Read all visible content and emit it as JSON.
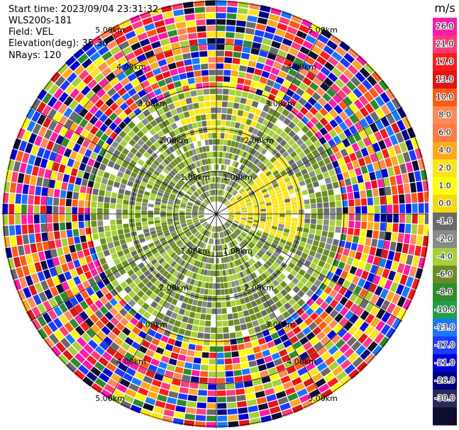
{
  "header": {
    "start_time": "Start time: 2023/09/04 23:31:32",
    "instrument": "WLS200s-181",
    "field": "Field: VEL",
    "elevation": "Elevation(deg): 35.30",
    "nrays": "NRays: 120"
  },
  "chart_data": {
    "type": "heatmap",
    "projection": "polar (PPI)",
    "nrays": 120,
    "range_rings_km": [
      {
        "value": 1.0,
        "label": "1.00km"
      },
      {
        "value": 2.0,
        "label": "2.00km"
      },
      {
        "value": 3.0,
        "label": "3.00km"
      },
      {
        "value": 4.0,
        "label": "4.00km"
      },
      {
        "value": 5.0,
        "label": "5.00km"
      }
    ],
    "colorbar": {
      "unit": "m/s",
      "ticks": [
        "26.0",
        "21.0",
        "17.0",
        "13.0",
        "10.0",
        "8.0",
        "6.0",
        "4.0",
        "2.0",
        "1.0",
        "0.0",
        "-1.0",
        "-2.0",
        "-4.0",
        "-6.0",
        "-8.0",
        "-10.0",
        "-13.0",
        "-17.0",
        "-21.0",
        "-26.0",
        "-30.0"
      ],
      "colors": [
        "#ff1aa8",
        "#ff3d7a",
        "#ff1a1a",
        "#e01515",
        "#ff5a14",
        "#ff8a55",
        "#ff7a45",
        "#ffa81c",
        "#ffe41a",
        "#ffff00",
        "#f5d90a",
        "#6a6a6a",
        "#8a8a8a",
        "#a6cf3a",
        "#6b8c22",
        "#2e8b2e",
        "#1f9e4a",
        "#1a78ff",
        "#1a3cff",
        "#0000d6",
        "#000080",
        "#2a2a5a",
        "#0d0d2e"
      ]
    },
    "regions": [
      {
        "range_km": [
          0.0,
          3.0
        ],
        "description_values_m_s": [
          -2,
          0,
          2
        ]
      },
      {
        "range_km": [
          3.0,
          5.2
        ],
        "description_values_m_s": [
          -30,
          26
        ]
      }
    ]
  }
}
